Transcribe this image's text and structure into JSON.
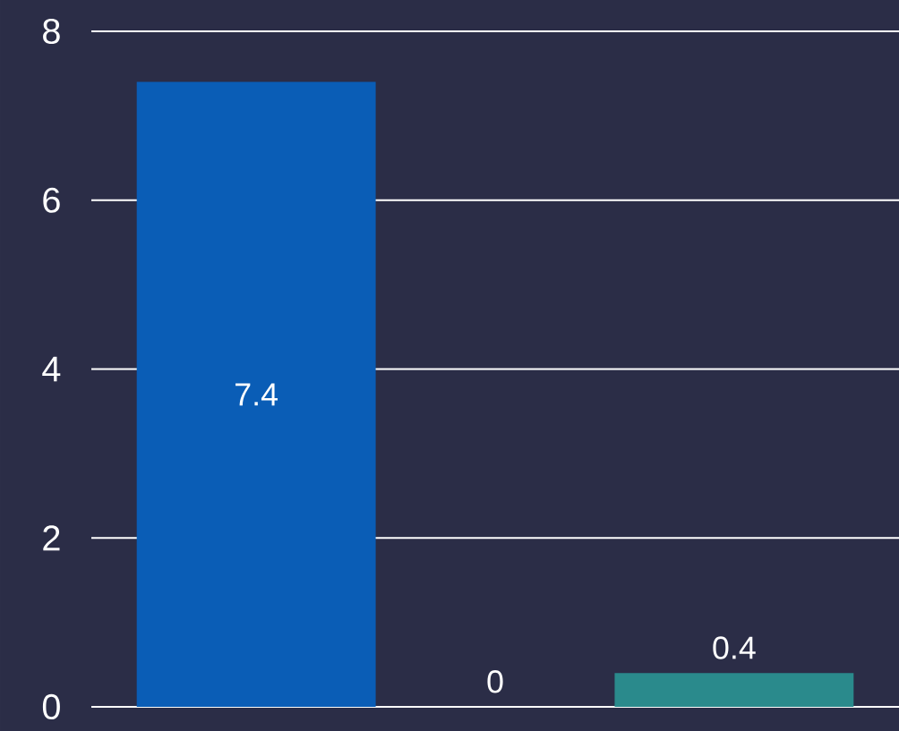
{
  "chart_data": {
    "type": "bar",
    "categories": [
      null,
      null,
      null
    ],
    "values": [
      7.4,
      0,
      0.4
    ],
    "colors": [
      "#0a5db6",
      "#1f6fb0",
      "#2a8a8c"
    ],
    "ylim": [
      0,
      8
    ],
    "yticks": [
      0,
      2,
      4,
      6,
      8
    ],
    "grid": "y",
    "data_labels": true
  }
}
